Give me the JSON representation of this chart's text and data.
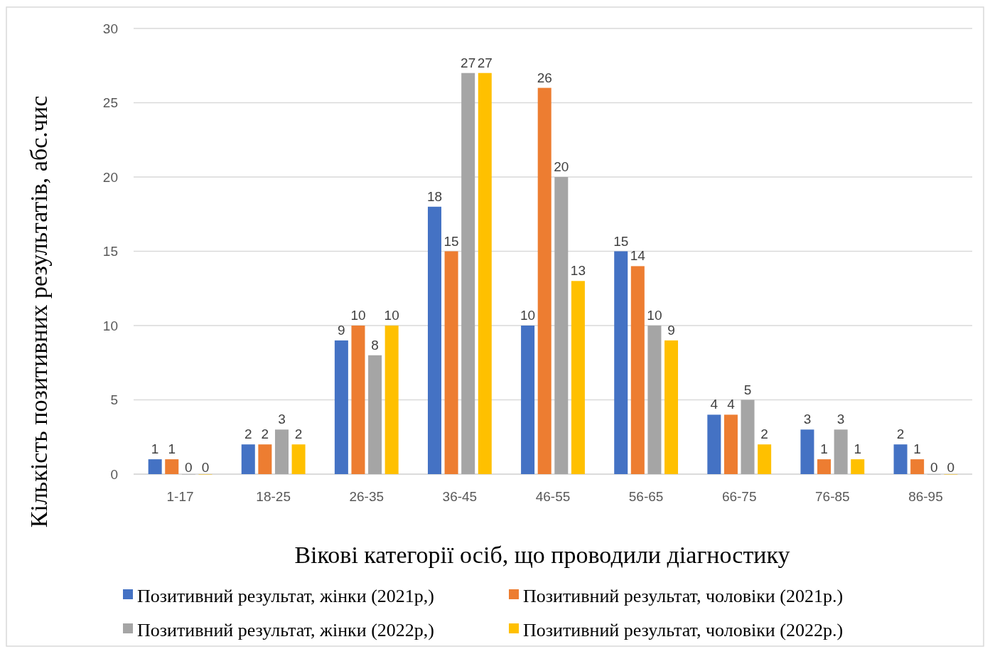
{
  "chart_data": {
    "type": "bar",
    "xlabel": "Вікові категорії осіб, що проводили діагностику",
    "ylabel": "Кількість позитивних результатів, абс.чис",
    "categories": [
      "1-17",
      "18-25",
      "26-35",
      "36-45",
      "46-55",
      "56-65",
      "66-75",
      "76-85",
      "86-95"
    ],
    "series": [
      {
        "name": "Позитивний результат, жінки (2021р,)",
        "color": "#4472c4",
        "values": [
          1,
          2,
          9,
          18,
          10,
          15,
          4,
          3,
          2
        ]
      },
      {
        "name": "Позитивний результат, чоловіки (2021р.)",
        "color": "#ed7d31",
        "values": [
          1,
          2,
          10,
          15,
          26,
          14,
          4,
          1,
          1
        ]
      },
      {
        "name": "Позитивний результат, жінки (2022р,)",
        "color": "#a5a5a5",
        "values": [
          0,
          3,
          8,
          27,
          20,
          10,
          5,
          3,
          0
        ]
      },
      {
        "name": "Позитивний результат, чоловіки (2022р.)",
        "color": "#ffc000",
        "values": [
          0,
          2,
          10,
          27,
          13,
          9,
          2,
          1,
          0
        ]
      }
    ],
    "ylim": [
      0,
      30
    ],
    "yticks": [
      0,
      5,
      10,
      15,
      20,
      25,
      30
    ],
    "grid": "y",
    "legend": "bottom",
    "data_labels": true
  }
}
